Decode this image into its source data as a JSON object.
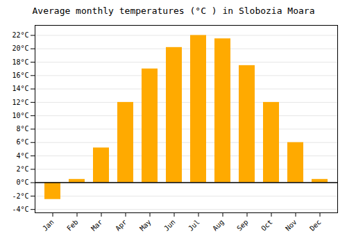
{
  "chart_data": {
    "type": "bar",
    "title": "Average monthly temperatures (°C ) in Slobozia Moara",
    "categories": [
      "Jan",
      "Feb",
      "Mar",
      "Apr",
      "May",
      "Jun",
      "Jul",
      "Aug",
      "Sep",
      "Oct",
      "Nov",
      "Dec"
    ],
    "values": [
      -2.5,
      0.5,
      5.2,
      12.0,
      17.0,
      20.2,
      22.0,
      21.5,
      17.5,
      12.0,
      6.0,
      0.5
    ],
    "color": "#FFAA00",
    "ylim": [
      -4.5,
      23.5
    ],
    "yticks": [
      {
        "value": -4,
        "label": "-4°C"
      },
      {
        "value": -2,
        "label": "-2°C"
      },
      {
        "value": 0,
        "label": "0°C"
      },
      {
        "value": 2,
        "label": "2°C"
      },
      {
        "value": 4,
        "label": "4°C"
      },
      {
        "value": 6,
        "label": "6°C"
      },
      {
        "value": 8,
        "label": "8°C"
      },
      {
        "value": 10,
        "label": "10°C"
      },
      {
        "value": 12,
        "label": "12°C"
      },
      {
        "value": 14,
        "label": "14°C"
      },
      {
        "value": 16,
        "label": "16°C"
      },
      {
        "value": 18,
        "label": "18°C"
      },
      {
        "value": 20,
        "label": "20°C"
      },
      {
        "value": 22,
        "label": "22°C"
      }
    ],
    "grid": true
  }
}
